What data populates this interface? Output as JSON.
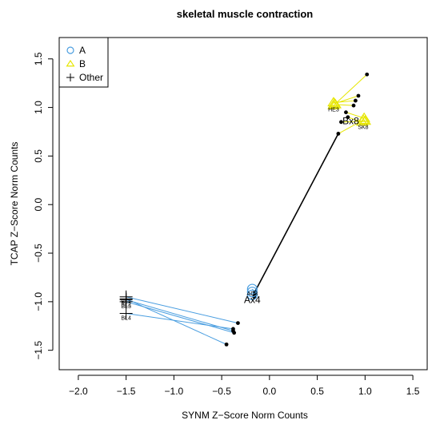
{
  "chart_data": {
    "type": "scatter",
    "title": "skeletal muscle contraction",
    "xlabel": "SYNM Z−Score Norm Counts",
    "ylabel": "TCAP Z−Score Norm Counts",
    "xlim": [
      -2.2,
      1.65
    ],
    "ylim": [
      -1.7,
      1.72
    ],
    "xticks": [
      -2.0,
      -1.5,
      -1.0,
      -0.5,
      0.0,
      0.5,
      1.0,
      1.5
    ],
    "xtick_labels": [
      "−2.0",
      "−1.5",
      "−1.0",
      "−0.5",
      "0.0",
      "0.5",
      "1.0",
      "1.5"
    ],
    "yticks": [
      -1.5,
      -1.0,
      -0.5,
      0.0,
      0.5,
      1.0,
      1.5
    ],
    "ytick_labels": [
      "−1.5",
      "−1.0",
      "−0.5",
      "0.0",
      "0.5",
      "1.0",
      "1.5"
    ],
    "legend": {
      "position": "top-left",
      "entries": [
        {
          "name": "A",
          "marker": "circle",
          "color": "#4a9ee0"
        },
        {
          "name": "B",
          "marker": "triangle",
          "color": "#e6e600"
        },
        {
          "name": "Other",
          "marker": "plus",
          "color": "#000000"
        }
      ]
    },
    "groups": [
      {
        "name": "A",
        "color": "#4a9ee0",
        "marker": "circle",
        "centroid_label": "Ax4",
        "centroid": [
          -0.18,
          -0.98
        ],
        "points": [
          {
            "label": "AD3",
            "x": -0.18,
            "y": -0.87,
            "proj": [
              -0.15,
              -0.9
            ]
          },
          {
            "label": "",
            "x": -0.18,
            "y": -0.9,
            "proj": [
              -0.15,
              -0.92
            ]
          },
          {
            "label": "",
            "x": -0.18,
            "y": -0.93,
            "proj": [
              -0.16,
              -0.95
            ]
          }
        ]
      },
      {
        "name": "B",
        "color": "#e6e600",
        "marker": "triangle",
        "centroid_label": "Bx8",
        "centroid": [
          0.85,
          0.86
        ],
        "points": [
          {
            "label": "HE3",
            "x": 0.67,
            "y": 1.05,
            "proj": [
              0.9,
              1.07
            ]
          },
          {
            "label": "",
            "x": 0.67,
            "y": 1.02,
            "proj": [
              1.02,
              1.34
            ]
          },
          {
            "label": "",
            "x": 0.68,
            "y": 1.04,
            "proj": [
              0.93,
              1.12
            ]
          },
          {
            "label": "",
            "x": 0.69,
            "y": 1.03,
            "proj": [
              0.88,
              1.02
            ]
          },
          {
            "label": "SK8",
            "x": 0.98,
            "y": 0.87,
            "proj": [
              0.72,
              0.73
            ]
          },
          {
            "label": "",
            "x": 0.99,
            "y": 0.89,
            "proj": [
              0.8,
              0.95
            ]
          },
          {
            "label": "",
            "x": 1.0,
            "y": 0.86,
            "proj": [
              0.75,
              0.85
            ]
          },
          {
            "label": "",
            "x": 0.97,
            "y": 0.85,
            "proj": [
              0.82,
              0.9
            ]
          }
        ]
      },
      {
        "name": "Other",
        "color": "#000000",
        "marker": "plus",
        "centroid_label": "",
        "points": [
          {
            "label": "BL1",
            "x": -1.5,
            "y": -0.95,
            "proj": [
              -0.33,
              -1.22
            ]
          },
          {
            "label": "BL2",
            "x": -1.5,
            "y": -0.98,
            "proj": [
              -0.38,
              -1.3
            ]
          },
          {
            "label": "BL3",
            "x": -1.5,
            "y": -1.0,
            "proj": [
              -0.37,
              -1.32
            ]
          },
          {
            "label": "BL4",
            "x": -1.5,
            "y": -1.12,
            "proj": [
              -0.38,
              -1.28
            ]
          },
          {
            "label": "",
            "x": -1.5,
            "y": -0.97,
            "proj": [
              -0.45,
              -1.44
            ]
          }
        ]
      }
    ],
    "regression_line": {
      "from": [
        -0.17,
        -0.93
      ],
      "to": [
        0.72,
        0.73
      ],
      "color": "#000000"
    }
  }
}
